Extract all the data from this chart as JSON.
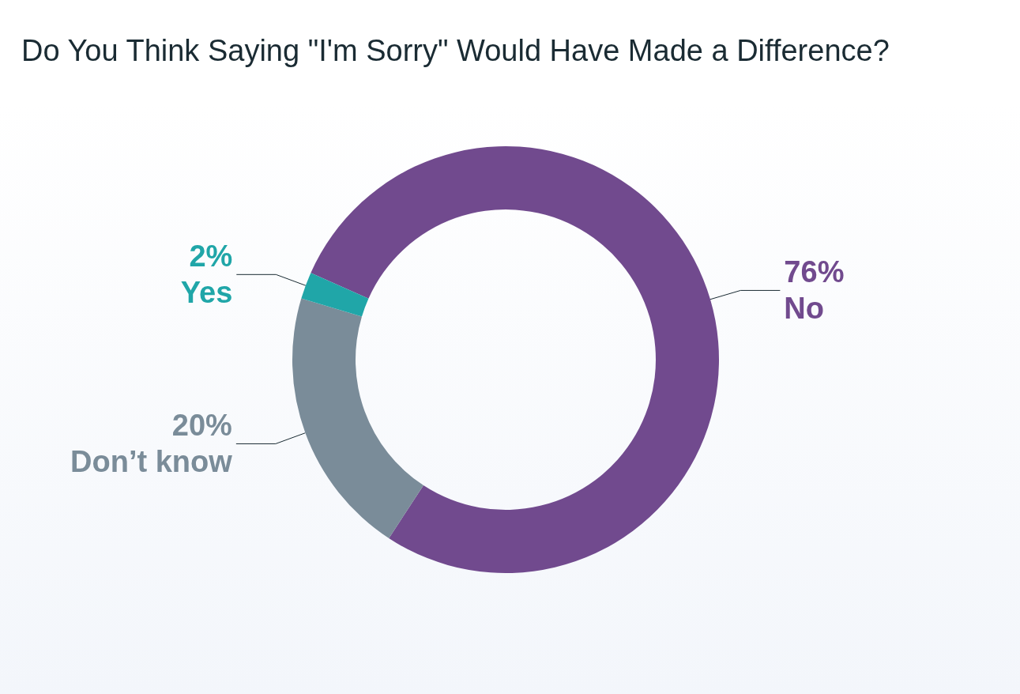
{
  "chart_data": {
    "type": "donut",
    "title": "Do You Think Saying \"I'm Sorry\" Would Have Made a Difference?",
    "categories": [
      "No",
      "Don’t know",
      "Yes"
    ],
    "values": [
      76,
      20,
      2
    ],
    "colors": [
      "#714a8e",
      "#7a8c99",
      "#20a6a8"
    ],
    "value_labels": [
      "76%",
      "20%",
      "2%"
    ],
    "legend": false
  }
}
